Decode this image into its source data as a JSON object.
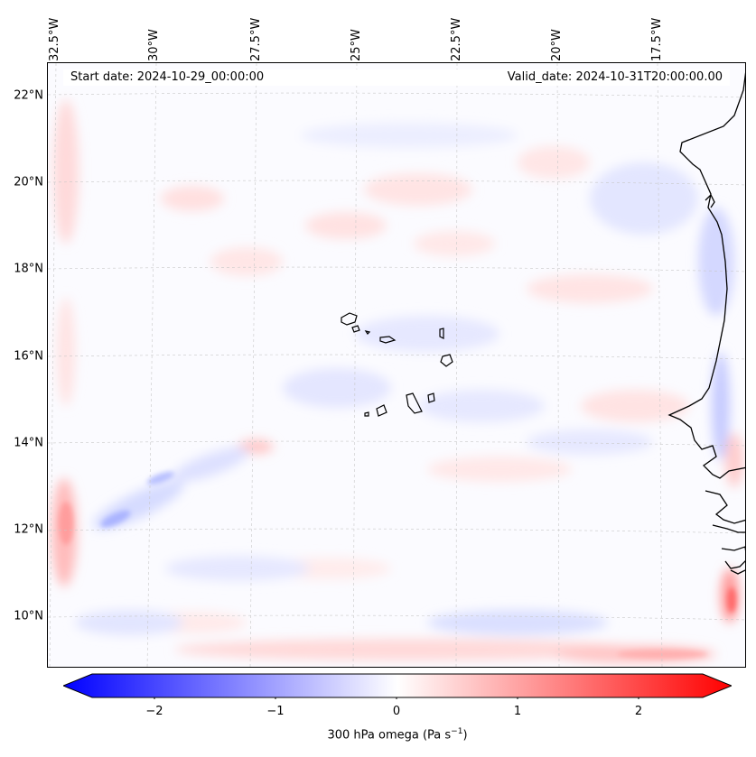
{
  "map": {
    "start_date_label": "Start date: 2024-10-29_00:00:00",
    "valid_date_label": "Valid_date: 2024-10-31T20:00:00.00",
    "lon_labels": [
      "32.5°W",
      "30°W",
      "27.5°W",
      "25°W",
      "22.5°W",
      "20°W",
      "17.5°W"
    ],
    "lat_labels": [
      "22°N",
      "20°N",
      "18°N",
      "16°N",
      "14°N",
      "12°N",
      "10°N"
    ],
    "field": "300 hPa omega",
    "colormap": "bwr",
    "negative_color": "#0000ff",
    "positive_color": "#ff0000",
    "neutral_color": "#ffffff",
    "coastline_color": "#000000",
    "features": [
      "cabo-verde-islands",
      "west-african-coast"
    ]
  },
  "colorbar": {
    "label_main": "300 hPa omega (Pa s",
    "label_exp": "−1",
    "label_close": ")",
    "tick_labels": [
      "−2",
      "−1",
      "0",
      "1",
      "2"
    ],
    "range": [
      -2.75,
      2.75
    ],
    "extend": "both",
    "orientation": "horizontal"
  }
}
